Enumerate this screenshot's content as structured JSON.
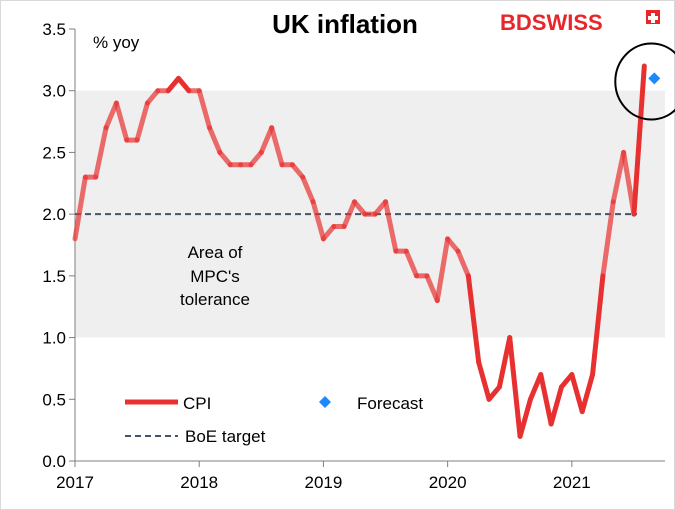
{
  "chart_data": {
    "type": "line",
    "title": "UK inflation",
    "unit_label": "% yoy",
    "xlabel": "",
    "ylabel": "% yoy",
    "ylim": [
      0,
      3.5
    ],
    "yticks": [
      "0.0",
      "0.5",
      "1.0",
      "1.5",
      "2.0",
      "2.5",
      "3.0",
      "3.5"
    ],
    "xlim": [
      2017,
      2021.75
    ],
    "xticks": [
      "2017",
      "2018",
      "2019",
      "2020",
      "2021"
    ],
    "tolerance_band": {
      "low": 1.0,
      "high": 3.0,
      "label": [
        "Area of",
        "MPC's",
        "tolerance"
      ],
      "color": "#efefef"
    },
    "target": {
      "name": "BoE target",
      "value": 2.0,
      "color": "#44546a"
    },
    "series": [
      {
        "name": "CPI",
        "color": "#e83030",
        "start": "2017-01",
        "values": [
          1.8,
          2.3,
          2.3,
          2.7,
          2.9,
          2.6,
          2.6,
          2.9,
          3.0,
          3.0,
          3.1,
          3.0,
          3.0,
          2.7,
          2.5,
          2.4,
          2.4,
          2.4,
          2.5,
          2.7,
          2.4,
          2.4,
          2.3,
          2.1,
          1.8,
          1.9,
          1.9,
          2.1,
          2.0,
          2.0,
          2.1,
          1.7,
          1.7,
          1.5,
          1.5,
          1.3,
          1.8,
          1.7,
          1.5,
          0.8,
          0.5,
          0.6,
          1.0,
          0.2,
          0.5,
          0.7,
          0.3,
          0.6,
          0.7,
          0.4,
          0.7,
          1.5,
          2.1,
          2.5,
          2.0,
          3.2
        ]
      }
    ],
    "forecast": {
      "name": "Forecast",
      "date": "2021-08",
      "value": 3.1,
      "color": "#1e88ff"
    },
    "highlight": "circle around latest CPI print and forecast",
    "legend": [
      {
        "label": "CPI",
        "style": "line",
        "color": "#e83030"
      },
      {
        "label": "Forecast",
        "style": "diamond",
        "color": "#1e88ff"
      },
      {
        "label": "BoE target",
        "style": "dashed",
        "color": "#44546a"
      }
    ],
    "legend_position": "bottom-left"
  },
  "brand": {
    "name": "BDSWISS",
    "part1": "BD",
    "part2": "SWISS",
    "color": "#e8262a"
  }
}
